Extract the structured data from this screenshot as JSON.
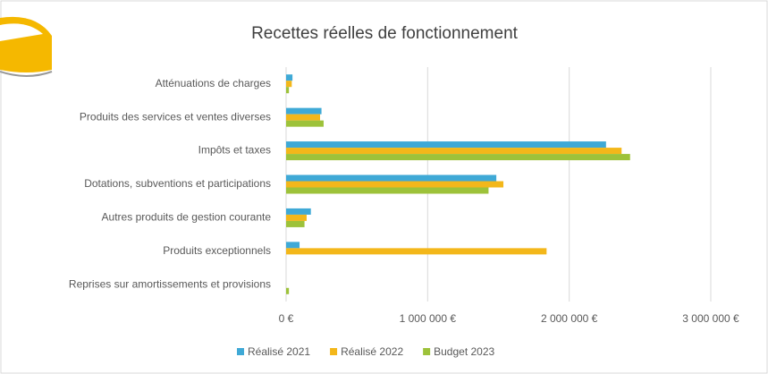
{
  "chart_data": {
    "type": "hbar",
    "title": "Recettes réelles de fonctionnement",
    "categories": [
      "Atténuations de charges",
      "Produits des services et ventes diverses",
      "Impôts et taxes",
      "Dotations, subventions et participations",
      "Autres produits de gestion courante",
      "Produits exceptionnels",
      "Reprises sur amortissements et provisions"
    ],
    "series": [
      {
        "name": "Réalisé 2021",
        "color": "#3fa9d6",
        "values": [
          45000,
          250000,
          2260000,
          1485000,
          175000,
          95000,
          0
        ]
      },
      {
        "name": "Réalisé 2022",
        "color": "#f3b71a",
        "values": [
          40000,
          240000,
          2370000,
          1535000,
          145000,
          1840000,
          0
        ]
      },
      {
        "name": "Budget 2023",
        "color": "#9dc23a",
        "values": [
          20000,
          265000,
          2430000,
          1430000,
          130000,
          0,
          20000
        ]
      }
    ],
    "xlim": [
      0,
      3000000
    ],
    "xticks": [
      {
        "value": 0,
        "label": "0 €"
      },
      {
        "value": 1000000,
        "label": "1 000 000 €"
      },
      {
        "value": 2000000,
        "label": "2 000 000 €"
      },
      {
        "value": 3000000,
        "label": "3 000 000 €"
      }
    ],
    "grid": true,
    "legend": "bottom"
  }
}
